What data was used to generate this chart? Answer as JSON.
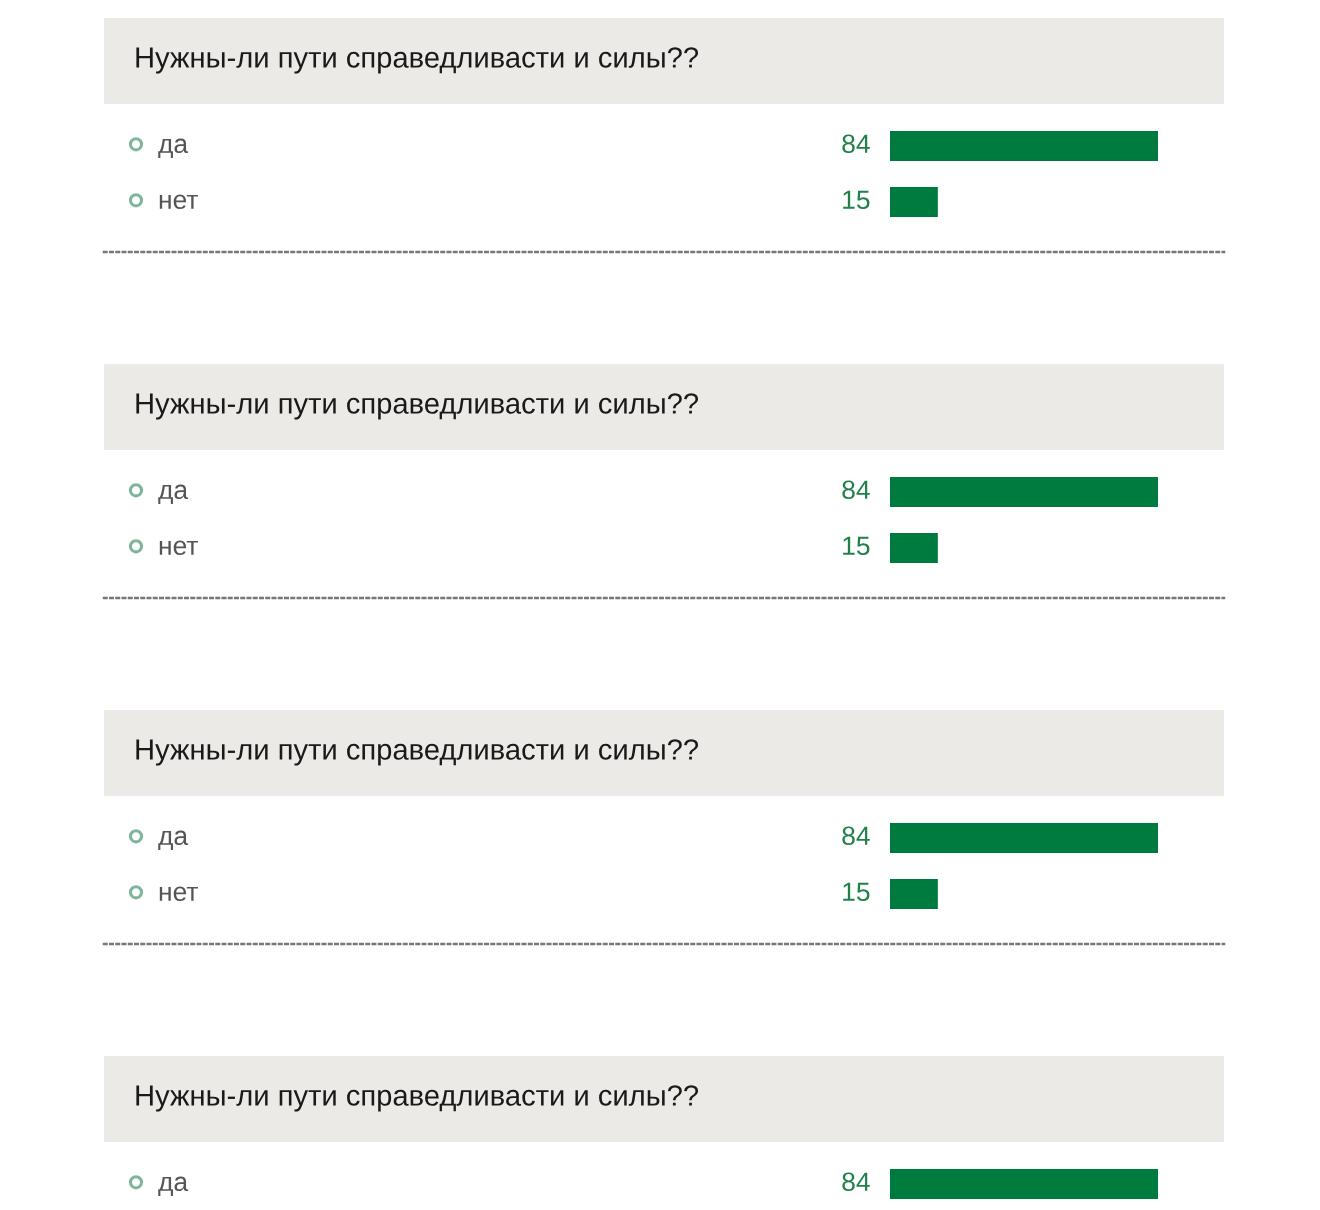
{
  "chart_data": [
    {
      "type": "bar",
      "orientation": "horizontal",
      "title": "Нужны-ли пути справедливасти и силы??",
      "categories": [
        "да",
        "нет"
      ],
      "values": [
        84,
        15
      ],
      "color": "#007b40",
      "data_labels": true
    },
    {
      "type": "bar",
      "orientation": "horizontal",
      "title": "Нужны-ли пути справедливасти и силы??",
      "categories": [
        "да",
        "нет"
      ],
      "values": [
        84,
        15
      ],
      "color": "#007b40",
      "data_labels": true
    },
    {
      "type": "bar",
      "orientation": "horizontal",
      "title": "Нужны-ли пути справедливасти и силы??",
      "categories": [
        "да",
        "нет"
      ],
      "values": [
        84,
        15
      ],
      "color": "#007b40",
      "data_labels": true
    },
    {
      "type": "bar",
      "orientation": "horizontal",
      "title": "Нужны-ли пути справедливасти и силы??",
      "categories": [
        "да"
      ],
      "values": [
        84
      ],
      "color": "#007b40",
      "data_labels": true
    }
  ]
}
